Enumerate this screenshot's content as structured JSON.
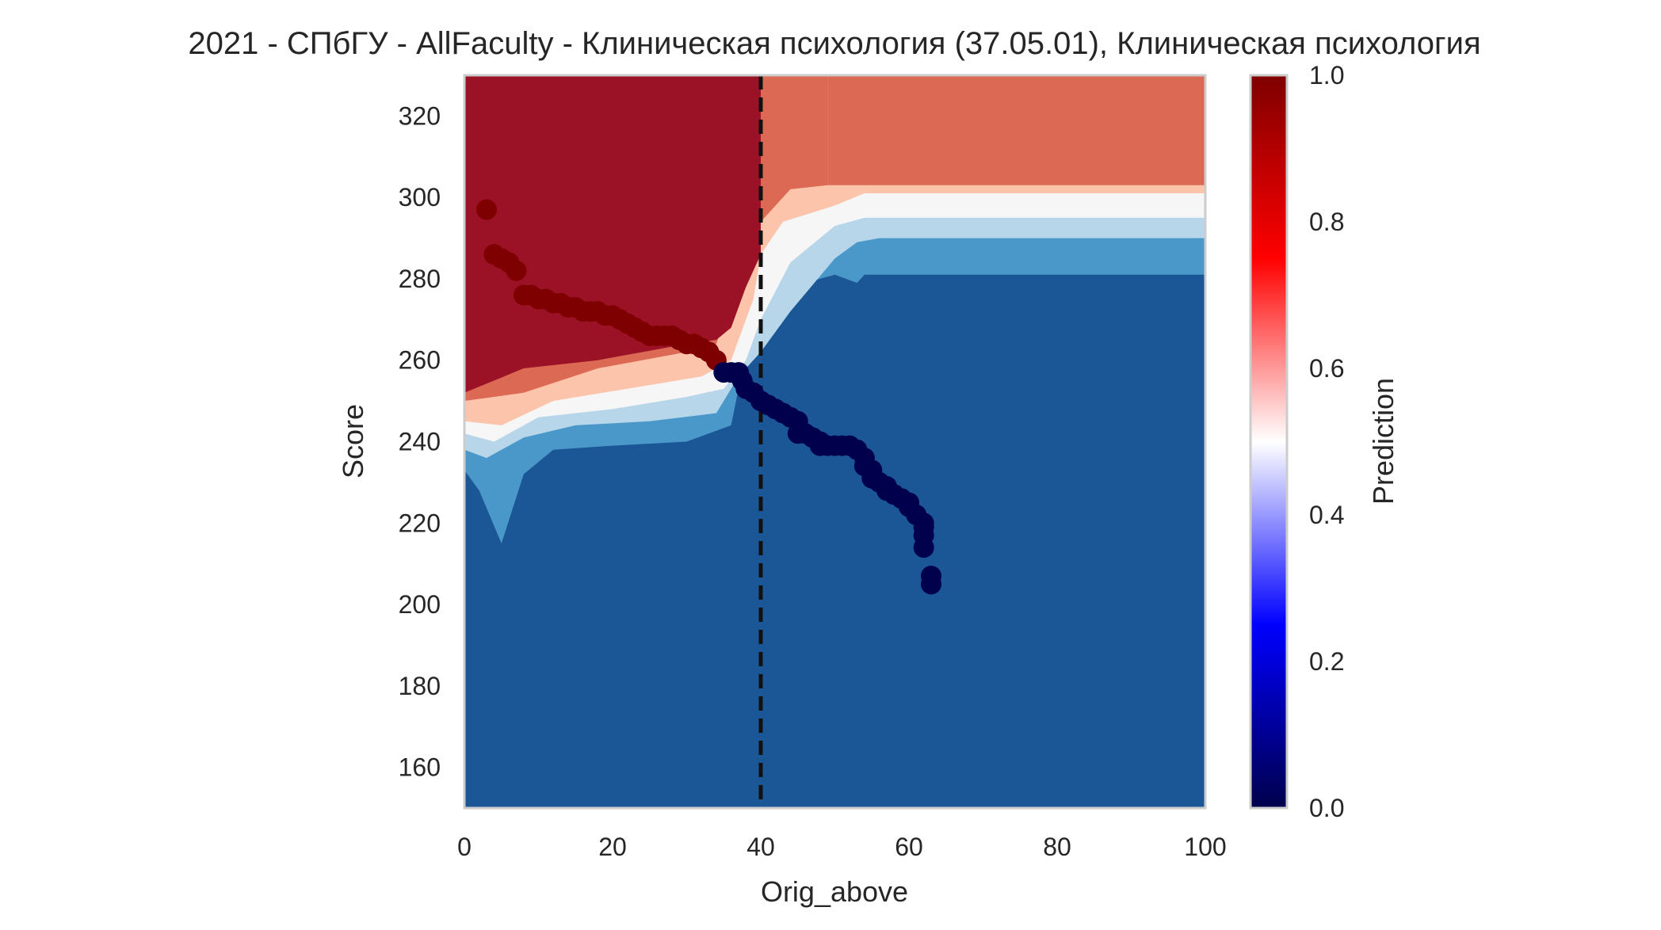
{
  "chart_data": {
    "type": "heatmap",
    "title": "2021 - СПбГУ - AllFaculty - Клиническая психология (37.05.01), Клиническая психология",
    "xlabel": "Orig_above",
    "ylabel": "Score",
    "xlim": [
      0,
      100
    ],
    "ylim": [
      150,
      330
    ],
    "x_ticks": [
      "0",
      "20",
      "40",
      "60",
      "80",
      "100"
    ],
    "y_ticks": [
      "160",
      "180",
      "200",
      "220",
      "240",
      "260",
      "280",
      "300",
      "320"
    ],
    "grid": false,
    "threshold_line": {
      "x": 40,
      "style": "dashed",
      "color": "#111111"
    },
    "colorbar": {
      "label": "Prediction",
      "range": [
        0,
        1
      ],
      "ticks": [
        "0.0",
        "0.2",
        "0.4",
        "0.6",
        "0.8",
        "1.0"
      ],
      "colormap": "seismic",
      "colors": [
        "#00004c",
        "#0000ff",
        "#ffffff",
        "#ff0000",
        "#7f0000"
      ]
    },
    "contour_levels": [
      {
        "level": 0.1,
        "color": "#1b5696"
      },
      {
        "level": 0.25,
        "color": "#4a98c9"
      },
      {
        "level": 0.4,
        "color": "#b7d6e9"
      },
      {
        "level": 0.5,
        "color": "#f6f6f6"
      },
      {
        "level": 0.6,
        "color": "#fbc4ab"
      },
      {
        "level": 0.75,
        "color": "#dc6954"
      },
      {
        "level": 0.9,
        "color": "#9b1227"
      }
    ],
    "series": [
      {
        "name": "",
        "label_value": 1,
        "color": "#7f0000",
        "points": [
          [
            3,
            297
          ],
          [
            4,
            286
          ],
          [
            5,
            285
          ],
          [
            6,
            284
          ],
          [
            7,
            282
          ],
          [
            8,
            276
          ],
          [
            9,
            276
          ],
          [
            10,
            275
          ],
          [
            11,
            275
          ],
          [
            12,
            274
          ],
          [
            13,
            274
          ],
          [
            14,
            273
          ],
          [
            15,
            273
          ],
          [
            16,
            272
          ],
          [
            17,
            272
          ],
          [
            18,
            272
          ],
          [
            19,
            271
          ],
          [
            20,
            271
          ],
          [
            21,
            270
          ],
          [
            22,
            269
          ],
          [
            23,
            268
          ],
          [
            24,
            267
          ],
          [
            25,
            266
          ],
          [
            26,
            266
          ],
          [
            27,
            266
          ],
          [
            28,
            266
          ],
          [
            29,
            265
          ],
          [
            30,
            264
          ],
          [
            31,
            264
          ],
          [
            32,
            263
          ],
          [
            33,
            262
          ],
          [
            34,
            260
          ]
        ]
      },
      {
        "name": "",
        "label_value": 0,
        "color": "#00004c",
        "points": [
          [
            35,
            257
          ],
          [
            36,
            257
          ],
          [
            37,
            257
          ],
          [
            37.5,
            255
          ],
          [
            38,
            253
          ],
          [
            39,
            252
          ],
          [
            40,
            250
          ],
          [
            41,
            249
          ],
          [
            42,
            248
          ],
          [
            43,
            247
          ],
          [
            44,
            246
          ],
          [
            45,
            245
          ],
          [
            45,
            242
          ],
          [
            46,
            242
          ],
          [
            47,
            241
          ],
          [
            48,
            240
          ],
          [
            48,
            239
          ],
          [
            49,
            239
          ],
          [
            50,
            239
          ],
          [
            51,
            239
          ],
          [
            52,
            239
          ],
          [
            53,
            238
          ],
          [
            54,
            236
          ],
          [
            54,
            234
          ],
          [
            55,
            233
          ],
          [
            55,
            231
          ],
          [
            56,
            230
          ],
          [
            57,
            229
          ],
          [
            57,
            228
          ],
          [
            58,
            227
          ],
          [
            59,
            226
          ],
          [
            60,
            225
          ],
          [
            60,
            224
          ],
          [
            61,
            222
          ],
          [
            62,
            220
          ],
          [
            62,
            219
          ],
          [
            62,
            217
          ],
          [
            62,
            214
          ],
          [
            63,
            207
          ],
          [
            63,
            205
          ]
        ]
      }
    ]
  }
}
